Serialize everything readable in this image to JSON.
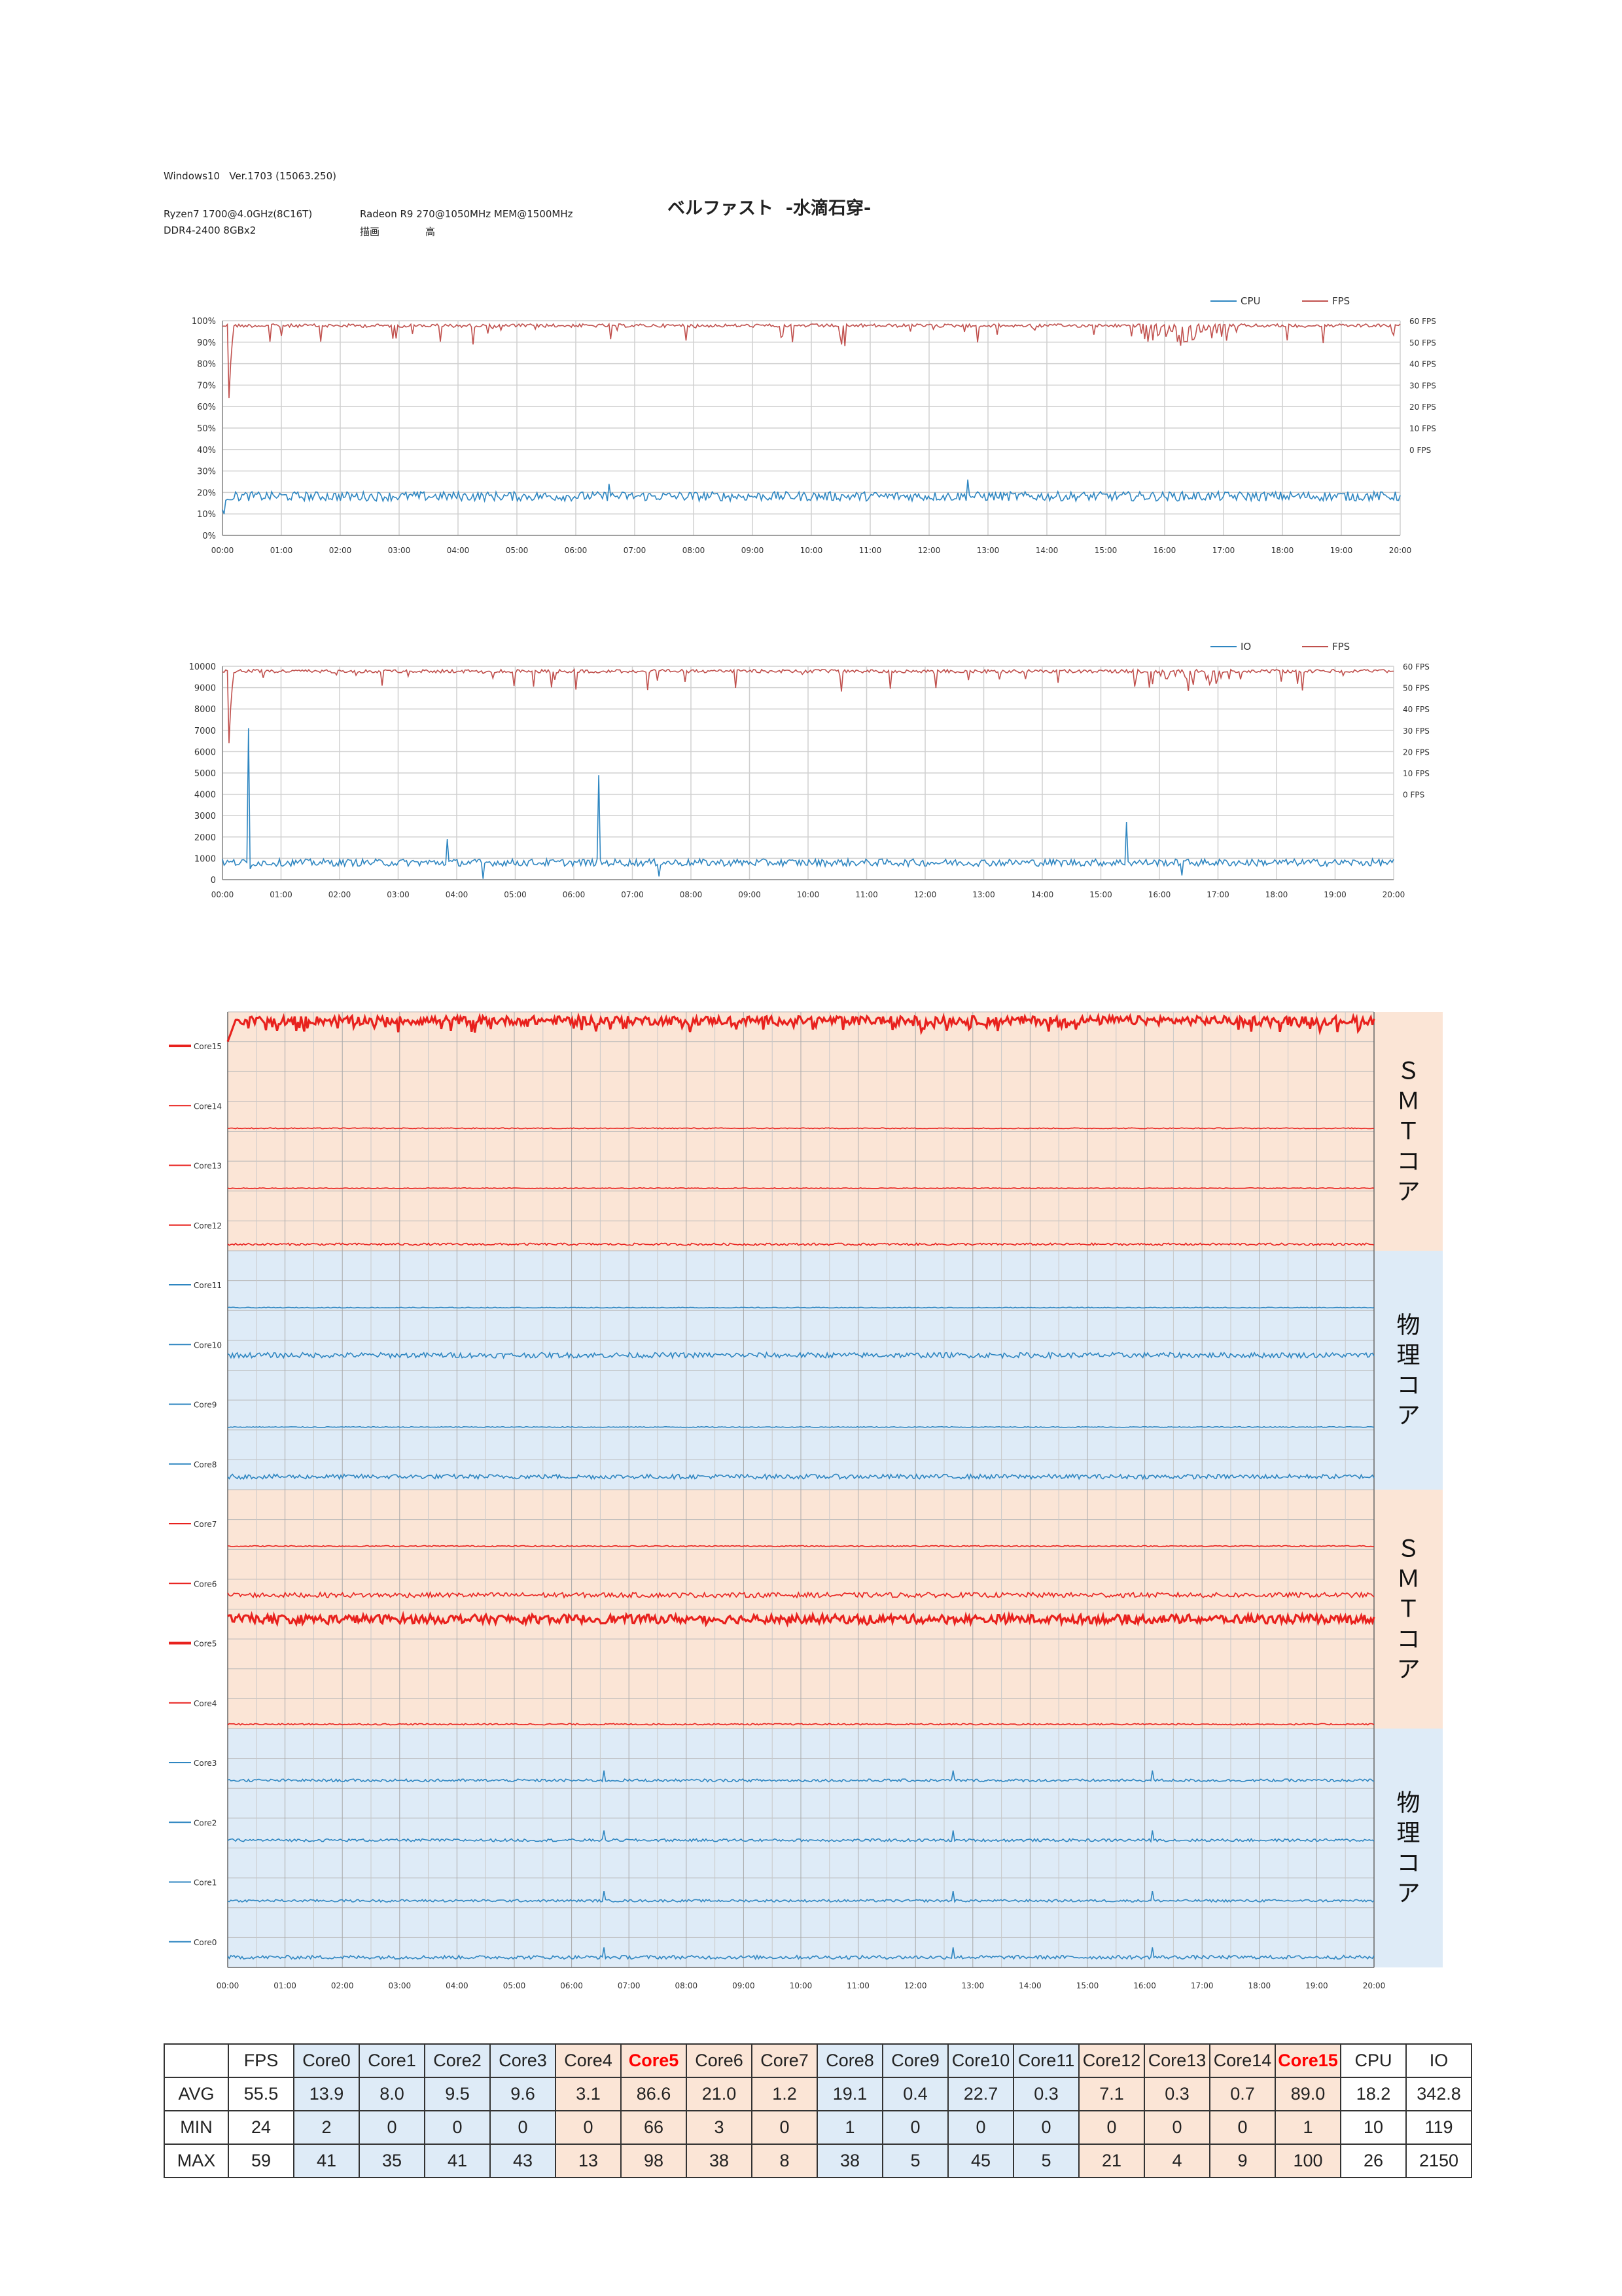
{
  "header": {
    "os": "Windows10   Ver.1703 (15063.250)",
    "cpu": "Ryzen7 1700@4.0GHz(8C16T)",
    "gpu": "Radeon R9 270@1050MHz MEM@1500MHz",
    "memory": "DDR4-2400 8GBx2",
    "quality_label": "描画",
    "quality_value": "高",
    "title": "ベルファスト  -水滴石穿-"
  },
  "colors": {
    "cpu": "#2e86c1",
    "fps": "#c0504d",
    "core_red": "#e8211d",
    "core_blue": "#2e86c1",
    "band_orange": "#fbe5d6",
    "band_blue": "#deebf7"
  },
  "time_ticks": [
    "00:00",
    "01:00",
    "02:00",
    "03:00",
    "04:00",
    "05:00",
    "06:00",
    "07:00",
    "08:00",
    "09:00",
    "10:00",
    "11:00",
    "12:00",
    "13:00",
    "14:00",
    "15:00",
    "16:00",
    "17:00",
    "18:00",
    "19:00",
    "20:00"
  ],
  "chart_data": [
    {
      "type": "line",
      "legend": [
        "CPU",
        "FPS"
      ],
      "y_left_ticks": [
        "100%",
        "90%",
        "80%",
        "70%",
        "60%",
        "50%",
        "40%",
        "30%",
        "20%",
        "10%",
        "0%"
      ],
      "y_right_ticks": [
        "60 FPS",
        "50 FPS",
        "40 FPS",
        "30 FPS",
        "20 FPS",
        "10 FPS",
        "0 FPS"
      ],
      "ylim_left": [
        0,
        100
      ],
      "series": [
        {
          "name": "CPU",
          "avg": 18.2,
          "min": 10,
          "max": 26
        },
        {
          "name": "FPS",
          "avg": 55.5,
          "min": 24,
          "max": 59
        }
      ]
    },
    {
      "type": "line",
      "legend": [
        "IO",
        "FPS"
      ],
      "y_left_ticks": [
        "10000",
        "9000",
        "8000",
        "7000",
        "6000",
        "5000",
        "4000",
        "3000",
        "2000",
        "1000",
        "0"
      ],
      "y_right_ticks": [
        "60 FPS",
        "50 FPS",
        "40 FPS",
        "30 FPS",
        "20 FPS",
        "10 FPS",
        "0 FPS"
      ],
      "ylim_left": [
        0,
        10000
      ],
      "series": [
        {
          "name": "IO",
          "avg": 342.8,
          "min": 119,
          "max": 2150
        },
        {
          "name": "FPS",
          "avg": 55.5,
          "min": 24,
          "max": 59
        }
      ]
    },
    {
      "type": "line",
      "series": [
        {
          "name": "Core15",
          "color": "red",
          "bold": true
        },
        {
          "name": "Core14",
          "color": "red"
        },
        {
          "name": "Core13",
          "color": "red"
        },
        {
          "name": "Core12",
          "color": "red"
        },
        {
          "name": "Core11",
          "color": "blue"
        },
        {
          "name": "Core10",
          "color": "blue"
        },
        {
          "name": "Core9",
          "color": "blue"
        },
        {
          "name": "Core8",
          "color": "blue"
        },
        {
          "name": "Core7",
          "color": "red"
        },
        {
          "name": "Core6",
          "color": "red"
        },
        {
          "name": "Core5",
          "color": "red",
          "bold": true
        },
        {
          "name": "Core4",
          "color": "red"
        },
        {
          "name": "Core3",
          "color": "blue"
        },
        {
          "name": "Core2",
          "color": "blue"
        },
        {
          "name": "Core1",
          "color": "blue"
        },
        {
          "name": "Core0",
          "color": "blue"
        }
      ],
      "bands": [
        {
          "label": "ＳＭＴコア",
          "style": "orange"
        },
        {
          "label": "物理コア",
          "style": "blue"
        },
        {
          "label": "ＳＭＴコア",
          "style": "orange"
        },
        {
          "label": "物理コア",
          "style": "blue"
        }
      ]
    }
  ],
  "stats_table": {
    "headers": [
      "",
      "FPS",
      "Core0",
      "Core1",
      "Core2",
      "Core3",
      "Core4",
      "Core5",
      "Core6",
      "Core7",
      "Core8",
      "Core9",
      "Core10",
      "Core11",
      "Core12",
      "Core13",
      "Core14",
      "Core15",
      "CPU",
      "IO"
    ],
    "rows": [
      [
        "AVG",
        "55.5",
        "13.9",
        "8.0",
        "9.5",
        "9.6",
        "3.1",
        "86.6",
        "21.0",
        "1.2",
        "19.1",
        "0.4",
        "22.7",
        "0.3",
        "7.1",
        "0.3",
        "0.7",
        "89.0",
        "18.2",
        "342.8"
      ],
      [
        "MIN",
        "24",
        "2",
        "0",
        "0",
        "0",
        "0",
        "66",
        "3",
        "0",
        "1",
        "0",
        "0",
        "0",
        "0",
        "0",
        "0",
        "1",
        "10",
        "119"
      ],
      [
        "MAX",
        "59",
        "41",
        "35",
        "41",
        "43",
        "13",
        "98",
        "38",
        "8",
        "38",
        "5",
        "45",
        "5",
        "21",
        "4",
        "9",
        "100",
        "26",
        "2150"
      ]
    ]
  }
}
